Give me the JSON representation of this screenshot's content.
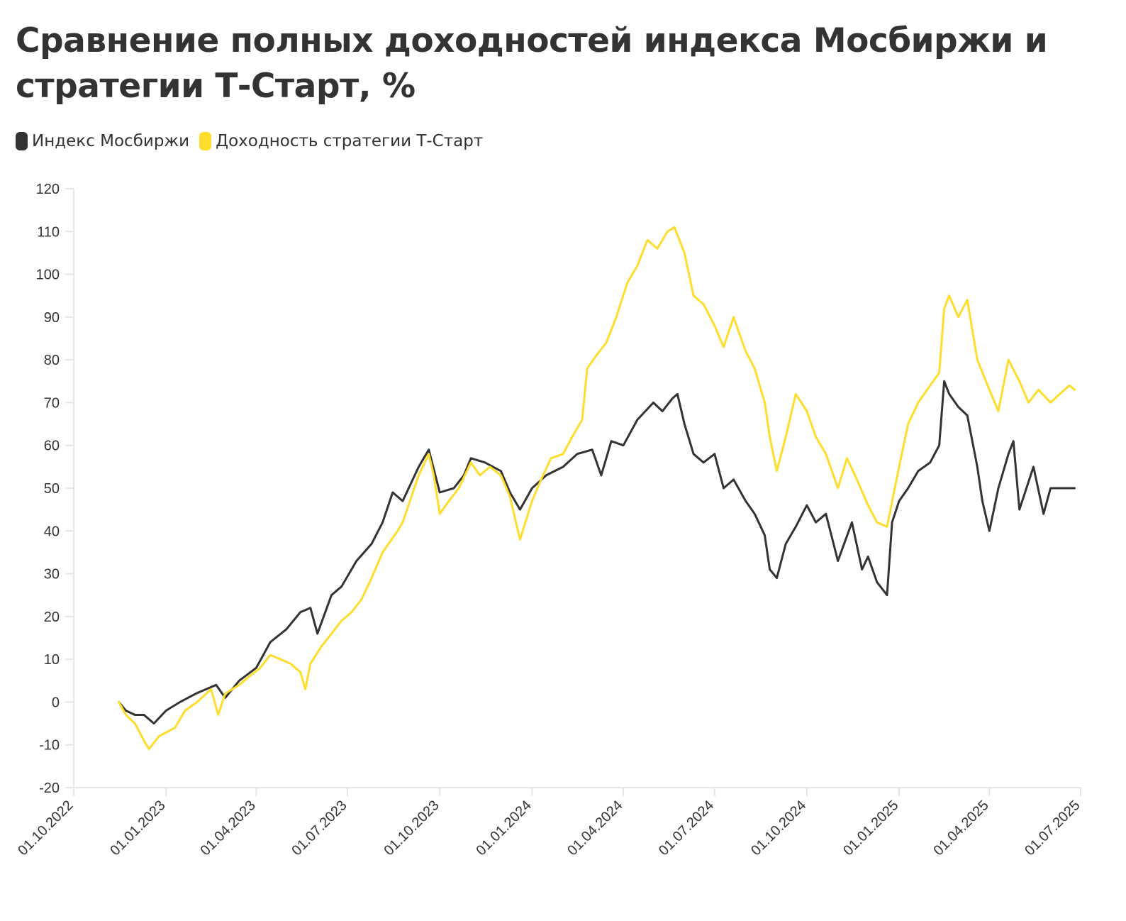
{
  "title": "Сравнение полных доходностей индекса Мосбиржи и стратегии Т-Старт, %",
  "legend": [
    {
      "label": "Индекс Мосбиржи",
      "color": "#333333"
    },
    {
      "label": "Доходность стратегии Т-Старт",
      "color": "#FFDD2D"
    }
  ],
  "chart_data": {
    "type": "line",
    "title": "Сравнение полных доходностей индекса Мосбиржи и стратегии Т-Старт, %",
    "xlabel": "",
    "ylabel": "",
    "ylim": [
      -20,
      120
    ],
    "yticks": [
      -20,
      -10,
      0,
      10,
      20,
      30,
      40,
      50,
      60,
      70,
      80,
      90,
      100,
      110,
      120
    ],
    "xlim": [
      "2022-10-01",
      "2025-07-01"
    ],
    "xticks": [
      "01.10.2022",
      "01.01.2023",
      "01.04.2023",
      "01.07.2023",
      "01.10.2023",
      "01.01.2024",
      "01.04.2024",
      "01.07.2024",
      "01.10.2024",
      "01.01.2025",
      "01.04.2025",
      "01.07.2025"
    ],
    "grid": false,
    "legend_position": "top-left",
    "series": [
      {
        "name": "Индекс Мосбиржи",
        "color": "#333333",
        "points": [
          [
            "2022-11-15",
            0
          ],
          [
            "2022-11-22",
            -2
          ],
          [
            "2022-12-01",
            -3
          ],
          [
            "2022-12-10",
            -3
          ],
          [
            "2022-12-20",
            -5
          ],
          [
            "2023-01-01",
            -2
          ],
          [
            "2023-01-15",
            0
          ],
          [
            "2023-01-31",
            2
          ],
          [
            "2023-02-20",
            4
          ],
          [
            "2023-03-01",
            1
          ],
          [
            "2023-03-15",
            5
          ],
          [
            "2023-04-01",
            8
          ],
          [
            "2023-04-15",
            14
          ],
          [
            "2023-05-01",
            17
          ],
          [
            "2023-05-15",
            21
          ],
          [
            "2023-05-25",
            22
          ],
          [
            "2023-06-01",
            16
          ],
          [
            "2023-06-15",
            25
          ],
          [
            "2023-06-25",
            27
          ],
          [
            "2023-07-10",
            33
          ],
          [
            "2023-07-25",
            37
          ],
          [
            "2023-08-05",
            42
          ],
          [
            "2023-08-15",
            49
          ],
          [
            "2023-08-25",
            47
          ],
          [
            "2023-09-10",
            55
          ],
          [
            "2023-09-20",
            59
          ],
          [
            "2023-10-01",
            49
          ],
          [
            "2023-10-15",
            50
          ],
          [
            "2023-10-25",
            53
          ],
          [
            "2023-11-01",
            57
          ],
          [
            "2023-11-15",
            56
          ],
          [
            "2023-12-01",
            54
          ],
          [
            "2023-12-10",
            49
          ],
          [
            "2023-12-20",
            45
          ],
          [
            "2024-01-01",
            50
          ],
          [
            "2024-01-15",
            53
          ],
          [
            "2024-02-01",
            55
          ],
          [
            "2024-02-15",
            58
          ],
          [
            "2024-03-01",
            59
          ],
          [
            "2024-03-10",
            53
          ],
          [
            "2024-03-20",
            61
          ],
          [
            "2024-04-01",
            60
          ],
          [
            "2024-04-15",
            66
          ],
          [
            "2024-05-01",
            70
          ],
          [
            "2024-05-10",
            68
          ],
          [
            "2024-05-20",
            71
          ],
          [
            "2024-05-25",
            72
          ],
          [
            "2024-06-01",
            65
          ],
          [
            "2024-06-10",
            58
          ],
          [
            "2024-06-20",
            56
          ],
          [
            "2024-07-01",
            58
          ],
          [
            "2024-07-10",
            50
          ],
          [
            "2024-07-20",
            52
          ],
          [
            "2024-08-01",
            47
          ],
          [
            "2024-08-10",
            44
          ],
          [
            "2024-08-20",
            39
          ],
          [
            "2024-08-25",
            31
          ],
          [
            "2024-09-01",
            29
          ],
          [
            "2024-09-10",
            37
          ],
          [
            "2024-09-20",
            41
          ],
          [
            "2024-10-01",
            46
          ],
          [
            "2024-10-10",
            42
          ],
          [
            "2024-10-20",
            44
          ],
          [
            "2024-11-01",
            33
          ],
          [
            "2024-11-15",
            42
          ],
          [
            "2024-11-25",
            31
          ],
          [
            "2024-12-01",
            34
          ],
          [
            "2024-12-10",
            28
          ],
          [
            "2024-12-20",
            25
          ],
          [
            "2024-12-25",
            42
          ],
          [
            "2025-01-01",
            47
          ],
          [
            "2025-01-10",
            50
          ],
          [
            "2025-01-20",
            54
          ],
          [
            "2025-02-01",
            56
          ],
          [
            "2025-02-10",
            60
          ],
          [
            "2025-02-15",
            75
          ],
          [
            "2025-02-20",
            72
          ],
          [
            "2025-03-01",
            69
          ],
          [
            "2025-03-10",
            67
          ],
          [
            "2025-03-20",
            55
          ],
          [
            "2025-03-25",
            47
          ],
          [
            "2025-04-01",
            40
          ],
          [
            "2025-04-10",
            50
          ],
          [
            "2025-04-20",
            58
          ],
          [
            "2025-04-25",
            61
          ],
          [
            "2025-05-01",
            45
          ],
          [
            "2025-05-15",
            55
          ],
          [
            "2025-05-25",
            44
          ],
          [
            "2025-06-01",
            50
          ],
          [
            "2025-06-25",
            50
          ]
        ]
      },
      {
        "name": "Доходность стратегии Т-Старт",
        "color": "#FFDD2D",
        "points": [
          [
            "2022-11-15",
            0
          ],
          [
            "2022-11-22",
            -3
          ],
          [
            "2022-12-01",
            -5
          ],
          [
            "2022-12-10",
            -9
          ],
          [
            "2022-12-15",
            -11
          ],
          [
            "2022-12-25",
            -8
          ],
          [
            "2023-01-10",
            -6
          ],
          [
            "2023-01-20",
            -2
          ],
          [
            "2023-02-01",
            0
          ],
          [
            "2023-02-15",
            3
          ],
          [
            "2023-02-22",
            -3
          ],
          [
            "2023-03-01",
            2
          ],
          [
            "2023-03-15",
            4
          ],
          [
            "2023-03-25",
            6
          ],
          [
            "2023-04-05",
            8
          ],
          [
            "2023-04-15",
            11
          ],
          [
            "2023-04-25",
            10
          ],
          [
            "2023-05-05",
            9
          ],
          [
            "2023-05-15",
            7
          ],
          [
            "2023-05-20",
            3
          ],
          [
            "2023-05-25",
            9
          ],
          [
            "2023-06-05",
            13
          ],
          [
            "2023-06-15",
            16
          ],
          [
            "2023-06-25",
            19
          ],
          [
            "2023-07-05",
            21
          ],
          [
            "2023-07-15",
            24
          ],
          [
            "2023-07-25",
            29
          ],
          [
            "2023-08-05",
            35
          ],
          [
            "2023-08-20",
            40
          ],
          [
            "2023-08-25",
            42
          ],
          [
            "2023-09-10",
            53
          ],
          [
            "2023-09-20",
            58
          ],
          [
            "2023-09-25",
            53
          ],
          [
            "2023-10-01",
            44
          ],
          [
            "2023-10-10",
            47
          ],
          [
            "2023-10-20",
            50
          ],
          [
            "2023-11-01",
            56
          ],
          [
            "2023-11-10",
            53
          ],
          [
            "2023-11-20",
            55
          ],
          [
            "2023-12-01",
            53
          ],
          [
            "2023-12-10",
            48
          ],
          [
            "2023-12-20",
            38
          ],
          [
            "2024-01-01",
            47
          ],
          [
            "2024-01-10",
            52
          ],
          [
            "2024-01-20",
            57
          ],
          [
            "2024-02-01",
            58
          ],
          [
            "2024-02-10",
            62
          ],
          [
            "2024-02-20",
            66
          ],
          [
            "2024-02-25",
            78
          ],
          [
            "2024-03-05",
            81
          ],
          [
            "2024-03-15",
            84
          ],
          [
            "2024-03-25",
            90
          ],
          [
            "2024-04-05",
            98
          ],
          [
            "2024-04-15",
            102
          ],
          [
            "2024-04-25",
            108
          ],
          [
            "2024-05-05",
            106
          ],
          [
            "2024-05-15",
            110
          ],
          [
            "2024-05-22",
            111
          ],
          [
            "2024-06-01",
            105
          ],
          [
            "2024-06-10",
            95
          ],
          [
            "2024-06-20",
            93
          ],
          [
            "2024-07-01",
            88
          ],
          [
            "2024-07-10",
            83
          ],
          [
            "2024-07-20",
            90
          ],
          [
            "2024-08-01",
            82
          ],
          [
            "2024-08-10",
            78
          ],
          [
            "2024-08-20",
            70
          ],
          [
            "2024-08-25",
            62
          ],
          [
            "2024-09-01",
            54
          ],
          [
            "2024-09-10",
            62
          ],
          [
            "2024-09-20",
            72
          ],
          [
            "2024-10-01",
            68
          ],
          [
            "2024-10-10",
            62
          ],
          [
            "2024-10-20",
            58
          ],
          [
            "2024-11-01",
            50
          ],
          [
            "2024-11-10",
            57
          ],
          [
            "2024-11-20",
            52
          ],
          [
            "2024-12-01",
            46
          ],
          [
            "2024-12-10",
            42
          ],
          [
            "2024-12-20",
            41
          ],
          [
            "2025-01-01",
            55
          ],
          [
            "2025-01-10",
            65
          ],
          [
            "2025-01-20",
            70
          ],
          [
            "2025-02-01",
            74
          ],
          [
            "2025-02-10",
            77
          ],
          [
            "2025-02-15",
            92
          ],
          [
            "2025-02-20",
            95
          ],
          [
            "2025-03-01",
            90
          ],
          [
            "2025-03-10",
            94
          ],
          [
            "2025-03-20",
            80
          ],
          [
            "2025-04-01",
            73
          ],
          [
            "2025-04-10",
            68
          ],
          [
            "2025-04-20",
            80
          ],
          [
            "2025-05-01",
            75
          ],
          [
            "2025-05-10",
            70
          ],
          [
            "2025-05-20",
            73
          ],
          [
            "2025-06-01",
            70
          ],
          [
            "2025-06-10",
            72
          ],
          [
            "2025-06-20",
            74
          ],
          [
            "2025-06-25",
            73
          ]
        ]
      }
    ]
  }
}
